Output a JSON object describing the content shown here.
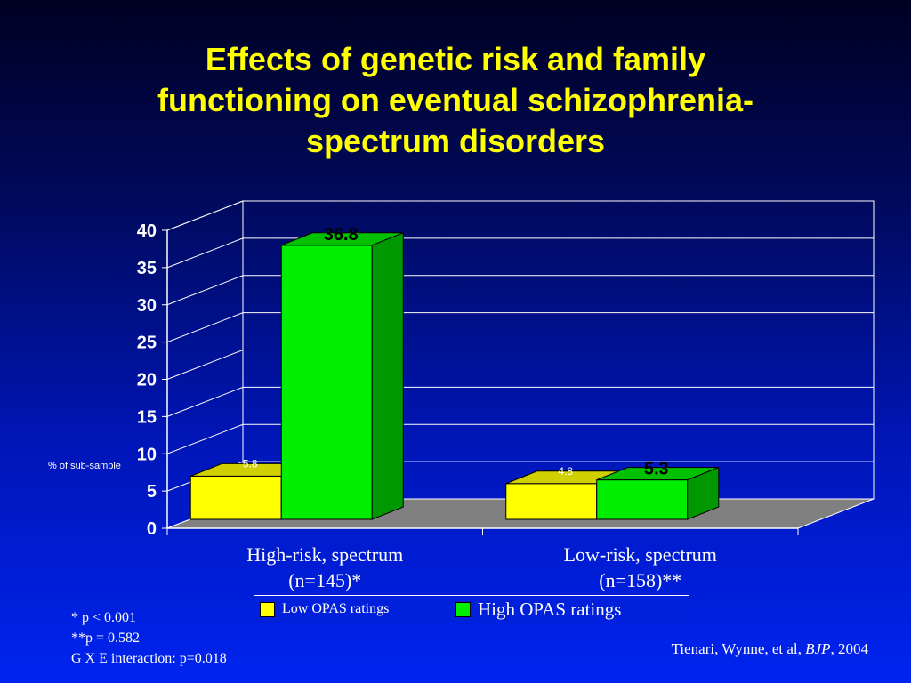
{
  "slide": {
    "title_lines": [
      "Effects of genetic risk and family",
      "functioning on eventual schizophrenia-",
      "spectrum disorders"
    ],
    "footnotes": [
      "* p < 0.001",
      "**p = 0.582",
      "G X E interaction: p=0.018"
    ],
    "citation": {
      "authors": "Tienari, Wynne, et al, ",
      "journal": "BJP",
      "year": ", 2004"
    }
  },
  "chart_data": {
    "type": "bar",
    "style": "3d-clustered",
    "ylabel": "% of sub-sample",
    "ylim": [
      0,
      40
    ],
    "yticks": [
      0,
      5,
      10,
      15,
      20,
      25,
      30,
      35,
      40
    ],
    "grid": true,
    "categories": [
      {
        "line1": "High-risk, spectrum",
        "line2": "(n=145)*"
      },
      {
        "line1": "Low-risk, spectrum",
        "line2": "(n=158)**"
      }
    ],
    "series": [
      {
        "name": "Low OPAS ratings",
        "values": [
          5.8,
          4.8
        ],
        "labels": [
          "5.8",
          "4.8"
        ],
        "color": "#ffff00"
      },
      {
        "name": "High OPAS ratings",
        "values": [
          36.8,
          5.3
        ],
        "labels": [
          "36.8",
          "5.3"
        ],
        "color": "#00ee00"
      }
    ],
    "legend_position": "bottom"
  }
}
